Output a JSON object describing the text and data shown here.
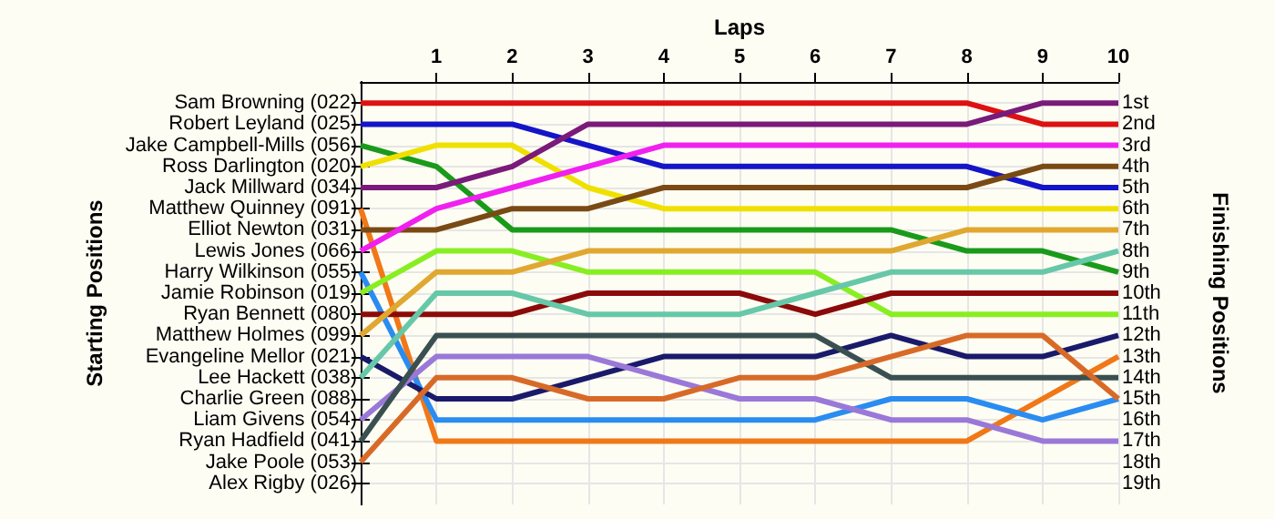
{
  "chart_data": {
    "type": "line",
    "xlabel": "Laps",
    "ylabel": "Finishing Positions",
    "x": [
      0,
      1,
      2,
      3,
      4,
      5,
      6,
      7,
      8,
      9,
      10
    ],
    "xlim": [
      0,
      10
    ],
    "xticks": [
      1,
      2,
      3,
      4,
      5,
      6,
      7,
      8,
      9,
      10
    ],
    "annotations": [
      "Starting Positions",
      "Sam Browning (022)",
      "Robert Leyland (025)",
      "Jake Campbell-Mills (056)",
      "Ross Darlington (020)",
      "Jack Millward (034)",
      "Matthew Quinney (091)",
      "Elliot Newton (031)",
      "Lewis Jones (066)",
      "Harry Wilkinson (055)",
      "Jamie Robinson (019)",
      "Ryan Bennett (080)",
      "Matthew Holmes (099)",
      "Evangeline Mellor (021)",
      "Lee Hackett (038)",
      "Charlie Green (088)",
      "Liam Givens (054)",
      "Ryan Hadfield (041)",
      "Jake Poole (053)",
      "Alex Rigby (026)"
    ],
    "ylim": [
      20,
      0
    ],
    "yticks": [
      {
        "value": 1,
        "label": "1st"
      },
      {
        "value": 2,
        "label": "2nd"
      },
      {
        "value": 3,
        "label": "3rd"
      },
      {
        "value": 4,
        "label": "4th"
      },
      {
        "value": 5,
        "label": "5th"
      },
      {
        "value": 6,
        "label": "6th"
      },
      {
        "value": 7,
        "label": "7th"
      },
      {
        "value": 8,
        "label": "8th"
      },
      {
        "value": 9,
        "label": "9th"
      },
      {
        "value": 10,
        "label": "10th"
      },
      {
        "value": 11,
        "label": "11th"
      },
      {
        "value": 12,
        "label": "12th"
      },
      {
        "value": 13,
        "label": "13th"
      },
      {
        "value": 14,
        "label": "14th"
      },
      {
        "value": 15,
        "label": "15th"
      },
      {
        "value": 16,
        "label": "16th"
      },
      {
        "value": 17,
        "label": "17th"
      },
      {
        "value": 18,
        "label": "18th"
      },
      {
        "value": 19,
        "label": "19th"
      }
    ],
    "grid": true,
    "marker": "none",
    "line_style": "solid",
    "series": [
      {
        "color": "#dd1111",
        "values": [
          1,
          1,
          1,
          1,
          1,
          1,
          1,
          1,
          1,
          2,
          2
        ]
      },
      {
        "color": "#1414c8",
        "values": [
          2,
          2,
          2,
          3,
          4,
          4,
          4,
          4,
          4,
          5,
          5
        ]
      },
      {
        "color": "#1a9a1a",
        "values": [
          3,
          4,
          7,
          7,
          7,
          7,
          7,
          7,
          8,
          8,
          9
        ]
      },
      {
        "color": "#f0e000",
        "values": [
          4,
          3,
          3,
          5,
          6,
          6,
          6,
          6,
          6,
          6,
          6
        ]
      },
      {
        "color": "#7a1a7a",
        "values": [
          5,
          5,
          4,
          2,
          2,
          2,
          2,
          2,
          2,
          1,
          1
        ]
      },
      {
        "color": "#f07818",
        "values": [
          6,
          17,
          17,
          17,
          17,
          17,
          17,
          17,
          17,
          15,
          13
        ]
      },
      {
        "color": "#7a4a14",
        "values": [
          7,
          7,
          6,
          6,
          5,
          5,
          5,
          5,
          5,
          4,
          4
        ]
      },
      {
        "color": "#f020f0",
        "values": [
          8,
          6,
          5,
          4,
          3,
          3,
          3,
          3,
          3,
          3,
          3
        ]
      },
      {
        "color": "#2a8cf0",
        "values": [
          9,
          16,
          16,
          16,
          16,
          16,
          16,
          15,
          15,
          16,
          15
        ]
      },
      {
        "color": "#88ee22",
        "values": [
          10,
          8,
          8,
          9,
          9,
          9,
          9,
          11,
          11,
          11,
          11
        ]
      },
      {
        "color": "#8b0a0a",
        "values": [
          11,
          11,
          11,
          10,
          10,
          10,
          11,
          10,
          10,
          10,
          10
        ]
      },
      {
        "color": "#e0a830",
        "values": [
          12,
          9,
          9,
          8,
          8,
          8,
          8,
          8,
          7,
          7,
          7
        ]
      },
      {
        "color": "#1a1a6a",
        "values": [
          13,
          15,
          15,
          14,
          13,
          13,
          13,
          12,
          13,
          13,
          12
        ]
      },
      {
        "color": "#66c8a8",
        "values": [
          14,
          10,
          10,
          11,
          11,
          11,
          10,
          9,
          9,
          9,
          8
        ]
      },
      {
        "color": "#9a78d8",
        "values": [
          16,
          13,
          13,
          13,
          14,
          15,
          15,
          16,
          16,
          17,
          17
        ]
      },
      {
        "color": "#3a5050",
        "values": [
          17,
          12,
          12,
          12,
          12,
          12,
          12,
          14,
          14,
          14,
          14
        ]
      },
      {
        "color": "#d86a28",
        "values": [
          18,
          14,
          14,
          15,
          15,
          14,
          14,
          13,
          12,
          12,
          15
        ]
      }
    ]
  }
}
